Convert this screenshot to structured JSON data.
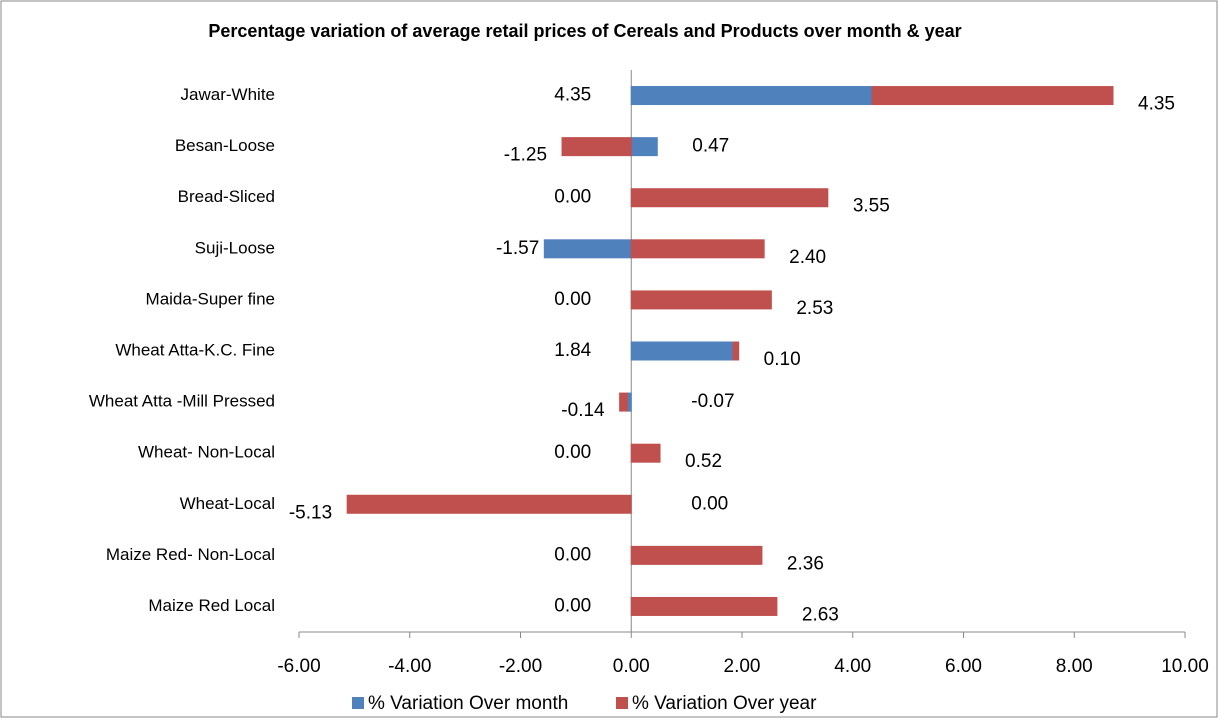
{
  "chart_data": {
    "type": "stacked_barh",
    "title": "Percentage variation of average retail prices of Cereals and Products over month & year",
    "categories": [
      "Jawar-White",
      "Besan-Loose",
      "Bread-Sliced",
      "Suji-Loose",
      "Maida-Super fine",
      "Wheat Atta-K.C. Fine",
      "Wheat Atta -Mill Pressed",
      "Wheat- Non-Local",
      "Wheat-Local",
      "Maize Red- Non-Local",
      "Maize Red Local"
    ],
    "series": [
      {
        "name": "% Variation Over month",
        "color": "#4f81bd",
        "values": [
          4.35,
          0.47,
          0,
          -1.57,
          0,
          1.84,
          -0.07,
          0,
          0,
          0,
          0
        ],
        "value_labels": [
          "4.35",
          "0.47",
          "0.00",
          "-1.57",
          "0.00",
          "1.84",
          "-0.07",
          "0.00",
          "0.00",
          "0.00",
          "0.00"
        ]
      },
      {
        "name": "% Variation Over year",
        "color": "#c0504d",
        "values": [
          4.35,
          -1.25,
          3.55,
          2.4,
          2.53,
          0.1,
          -0.14,
          0.52,
          -5.13,
          2.36,
          2.63
        ],
        "value_labels": [
          "4.35",
          "-1.25",
          "3.55",
          "2.40",
          "2.53",
          "0.10",
          "-0.14",
          "0.52",
          "-5.13",
          "2.36",
          "2.63"
        ]
      }
    ],
    "xlim": [
      -6,
      10
    ],
    "xticks": [
      {
        "value": -6,
        "label": "-6.00"
      },
      {
        "value": -4,
        "label": "-4.00"
      },
      {
        "value": -2,
        "label": "-2.00"
      },
      {
        "value": 0,
        "label": "0.00"
      },
      {
        "value": 2,
        "label": "2.00"
      },
      {
        "value": 4,
        "label": "4.00"
      },
      {
        "value": 6,
        "label": "6.00"
      },
      {
        "value": 8,
        "label": "8.00"
      },
      {
        "value": 10,
        "label": "10.00"
      }
    ],
    "legend": "bottom"
  }
}
